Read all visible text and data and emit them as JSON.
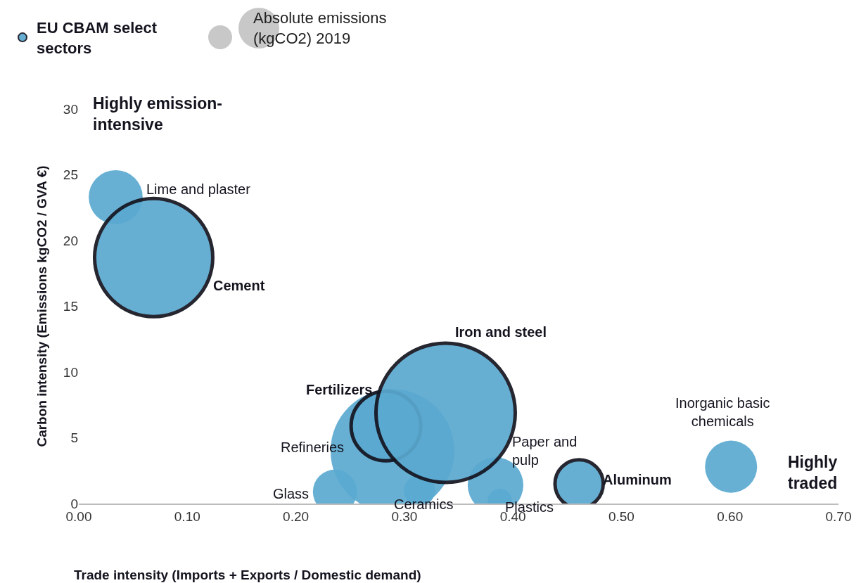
{
  "chart_data": {
    "type": "bubble",
    "xlabel": "Trade intensity (Imports + Exports / Domestic demand)",
    "ylabel": "Carbon intensity (Emissions kgCO2 / GVA €)",
    "legend_title": "Absolute emissions (kgCO2) 2019",
    "xlim": [
      0,
      0.7
    ],
    "xticks": [
      {
        "value": 0,
        "label": "0.00"
      },
      {
        "value": 0.1,
        "label": "0.10"
      },
      {
        "value": 0.2,
        "label": "0.20"
      },
      {
        "value": 0.3,
        "label": "0.30"
      },
      {
        "value": 0.4,
        "label": "0.40"
      },
      {
        "value": 0.5,
        "label": "0.50"
      },
      {
        "value": 0.6,
        "label": "0.60"
      },
      {
        "value": 0.7,
        "label": "0.70"
      }
    ],
    "ylim": [
      0,
      30
    ],
    "yticks": [
      0,
      5,
      10,
      15,
      20,
      25,
      30
    ],
    "legend": "top left",
    "series": [
      {
        "color": "#5aa9d0",
        "x": [
          0.034,
          0.289,
          0.236,
          0.314,
          0.384,
          0.388,
          0.601
        ],
        "values": [
          23.3,
          4.0,
          0.9,
          1.0,
          1.4,
          0.2,
          2.8
        ],
        "sizes": [
          0.15,
          0.79,
          0.1,
          0.05,
          0.16,
          0.03,
          0.14
        ]
      },
      {
        "name": "EU CBAM select sectors",
        "color": "#5aa9d0",
        "x": [
          0.069,
          0.283,
          0.338,
          0.461
        ],
        "values": [
          18.7,
          5.9,
          6.9,
          1.5
        ],
        "sizes": [
          0.72,
          0.25,
          1,
          0.12
        ]
      }
    ],
    "annotations": [
      "Highly emission-intensive",
      "Highly traded",
      "Cement",
      "Iron and steel",
      "Refineries",
      {
        "text": "Lime and plaster",
        "x": 0.034,
        "y": 23.3
      },
      {
        "text": "Glass",
        "x": 0.236,
        "y": 0.9
      },
      {
        "text": "Ceramics",
        "x": 0.314,
        "y": 1.0
      },
      {
        "text": "Paper and pulp",
        "x": 0.384,
        "y": 1.4
      },
      {
        "text": "Plastics",
        "x": 0.388,
        "y": 0.2
      },
      {
        "text": "Inorganic basic chemicals",
        "x": 0.601,
        "y": 2.8
      },
      {
        "text": "Fertilizers",
        "x": 0.283,
        "y": 5.9
      },
      {
        "text": "Aluminum",
        "x": 0.461,
        "y": 1.5
      }
    ]
  }
}
